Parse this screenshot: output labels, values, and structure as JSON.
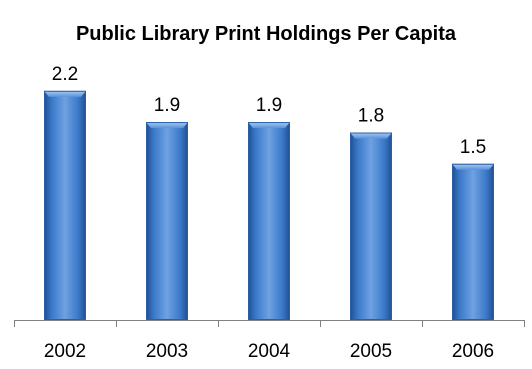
{
  "chart_data": {
    "type": "bar",
    "title": "Public Library Print Holdings Per Capita",
    "categories": [
      "2002",
      "2003",
      "2004",
      "2005",
      "2006"
    ],
    "values": [
      2.2,
      1.9,
      1.9,
      1.8,
      1.5
    ],
    "data_labels": [
      "2.2",
      "1.9",
      "1.9",
      "1.8",
      "1.5"
    ],
    "xlabel": "",
    "ylabel": "",
    "ylim": [
      0,
      2.4
    ],
    "grid": false,
    "legend": "none",
    "colors": {
      "bar": "#3a78c8",
      "bar_light": "#7aaee8",
      "bar_dark": "#1f4f8f",
      "axis": "#808080"
    }
  }
}
